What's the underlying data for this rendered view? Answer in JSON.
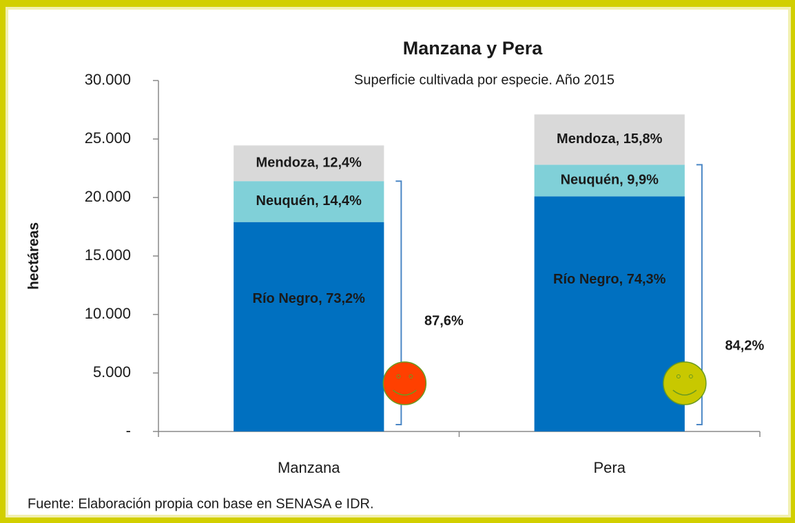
{
  "chart_data": {
    "type": "stacked-bar",
    "title": "Manzana y Pera",
    "subtitle": "Superficie cultivada por especie. Año 2015",
    "y_label": "hectáreas",
    "source": "Fuente: Elaboración propia con base en SENASA e IDR.",
    "categories": [
      "Manzana",
      "Pera"
    ],
    "series": [
      {
        "name": "Río Negro",
        "color": "#0070c0",
        "label_color": "#ffffff",
        "values": [
          17900,
          20100
        ],
        "value_labels": [
          "Río Negro, 73,2%",
          "Río Negro, 74,3%"
        ]
      },
      {
        "name": "Neuquén",
        "color": "#80d0d8",
        "label_color": "#1a1a1a",
        "values": [
          3500,
          2700
        ],
        "value_labels": [
          "Neuquén,  14,4%",
          "Neuquén,  9,9%"
        ]
      },
      {
        "name": "Mendoza",
        "color": "#d9d9d9",
        "label_color": "#1a1a1a",
        "values": [
          3050,
          4300
        ],
        "value_labels": [
          "Mendoza,  12,4%",
          "Mendoza,  15,8%"
        ]
      }
    ],
    "annotations": [
      {
        "text": "87,6%",
        "category": 0,
        "face": "#ff4000"
      },
      {
        "text": "84,2%",
        "category": 1,
        "face": "#c8c800"
      }
    ],
    "ylim": [
      0,
      30000
    ],
    "yticks": [
      {
        "value": 0,
        "label": "-"
      },
      {
        "value": 5000,
        "label": "5.000"
      },
      {
        "value": 10000,
        "label": "10.000"
      },
      {
        "value": 15000,
        "label": "15.000"
      },
      {
        "value": 20000,
        "label": "20.000"
      },
      {
        "value": 25000,
        "label": "25.000"
      },
      {
        "value": 30000,
        "label": "30.000"
      }
    ]
  }
}
